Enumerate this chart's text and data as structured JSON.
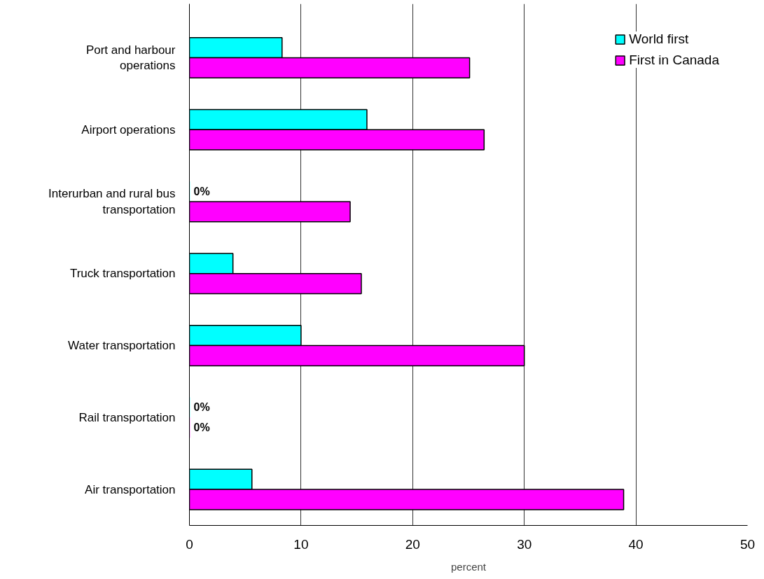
{
  "chart_data": {
    "type": "bar",
    "orientation": "horizontal",
    "xlabel": "percent",
    "categories": [
      "Port and harbour\noperations",
      "Airport operations",
      "Interurban and rural bus\ntransportation",
      "Truck transportation",
      "Water transportation",
      "Rail transportation",
      "Air transportation"
    ],
    "series": [
      {
        "name": "World first",
        "color": "#00ffff",
        "values": [
          8.3,
          15.9,
          0,
          3.9,
          10.0,
          0,
          5.6
        ],
        "value_labels": [
          null,
          null,
          "0%",
          null,
          null,
          "0%",
          null
        ]
      },
      {
        "name": "First in Canada",
        "color": "#ff00ff",
        "values": [
          25.1,
          26.4,
          14.4,
          15.4,
          30.0,
          0,
          38.9
        ],
        "value_labels": [
          null,
          null,
          null,
          null,
          null,
          "0%",
          null
        ]
      }
    ],
    "xlim": [
      0,
      50
    ],
    "xticks": [
      0,
      10,
      20,
      30,
      40,
      50
    ],
    "grid": "x",
    "legend": "top right"
  }
}
